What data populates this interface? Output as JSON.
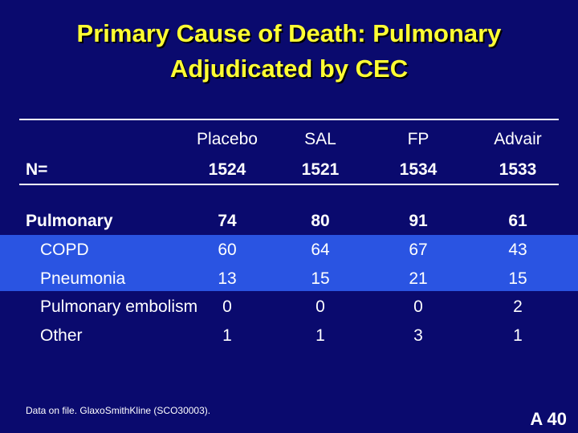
{
  "slide": {
    "title_line1": "Primary Cause of Death: Pulmonary",
    "title_line2": "Adjudicated by CEC",
    "footnote": "Data on file. GlaxoSmithKline (SCO30003).",
    "slide_id": "A 40"
  },
  "table": {
    "columns": [
      "Placebo",
      "SAL",
      "FP",
      "Advair"
    ],
    "n_row": {
      "label": "N=",
      "values": [
        "1524",
        "1521",
        "1534",
        "1533"
      ]
    },
    "rows": [
      {
        "label": "Pulmonary",
        "values": [
          "74",
          "80",
          "91",
          "61"
        ]
      },
      {
        "label": "COPD",
        "values": [
          "60",
          "64",
          "67",
          "43"
        ]
      },
      {
        "label": "Pneumonia",
        "values": [
          "13",
          "15",
          "21",
          "15"
        ]
      },
      {
        "label": "Pulmonary embolism",
        "values": [
          "0",
          "0",
          "0",
          "2"
        ]
      },
      {
        "label": "Other",
        "values": [
          "1",
          "1",
          "3",
          "1"
        ]
      }
    ]
  },
  "colors": {
    "background": "#0a0a6e",
    "title": "#ffff33",
    "highlight_band": "#2a54e2",
    "text": "#ffffff"
  }
}
